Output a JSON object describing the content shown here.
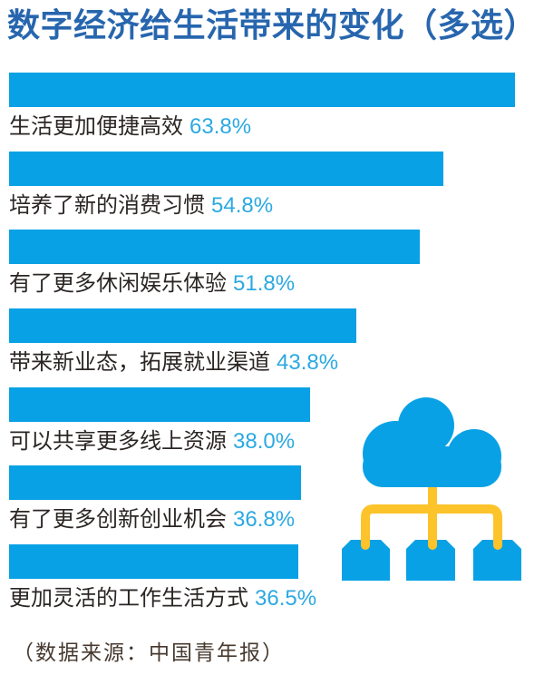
{
  "source_note": "（数据来源：中国青年报）",
  "colors": {
    "title_blue": "#2766ae",
    "bar_blue": "#09a1e5",
    "value_blue": "#2ba9e2",
    "label_dark": "#2b2624",
    "connector_yellow": "#fdc32b",
    "source_text": "#46392f",
    "background": "#ffffff"
  },
  "illustration": {
    "name": "cloud-network",
    "cloud_color": "#09a1e5",
    "node_count": 3,
    "node_color": "#09a1e5",
    "connector_color": "#fdc32b"
  },
  "chart_data": {
    "type": "bar",
    "orientation": "horizontal",
    "title": "数字经济给生活带来的变化（多选）",
    "categories": [
      "生活更加便捷高效",
      "培养了新的消费习惯",
      "有了更多休闲娱乐体验",
      "带来新业态，拓展就业渠道",
      "可以共享更多线上资源",
      "有了更多创新创业机会",
      "更加灵活的工作生活方式"
    ],
    "values": [
      63.8,
      54.8,
      51.8,
      43.8,
      38.0,
      36.8,
      36.5
    ],
    "display_values": [
      "63.8%",
      "54.8%",
      "51.8%",
      "43.8%",
      "38.0%",
      "36.8%",
      "36.5%"
    ],
    "value_suffix": "%",
    "xlim": [
      0,
      63.8
    ],
    "bar_color": "#09a1e5",
    "value_label_color": "#2ba9e2",
    "grid": false,
    "legend": false,
    "labels_position": "below-bar"
  }
}
